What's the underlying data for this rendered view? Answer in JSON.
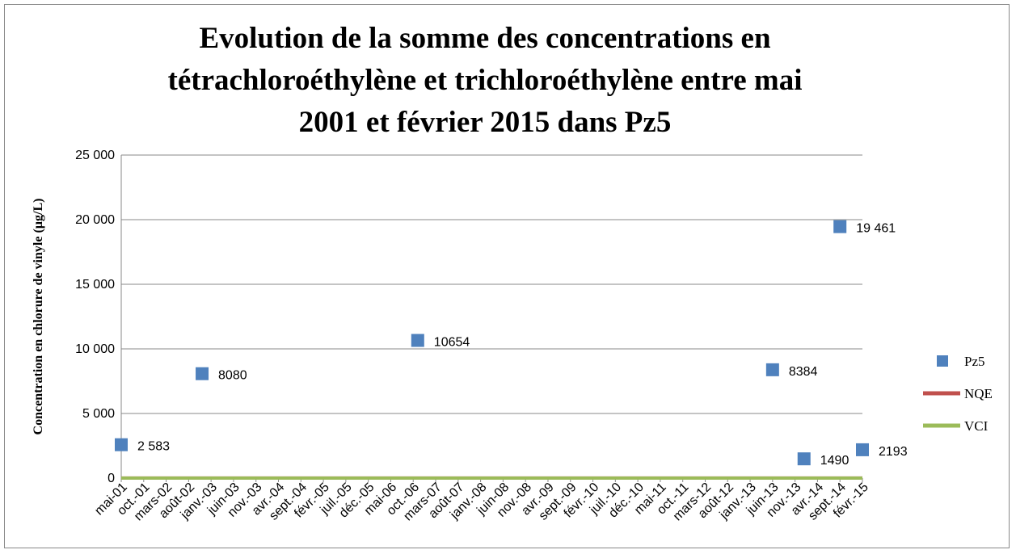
{
  "chart_data": {
    "type": "scatter",
    "title": "Evolution de la somme des concentrations en tétrachloroéthylène et trichloroéthylène entre mai 2001 et février 2015 dans Pz5",
    "ylabel": "Concentration en chlorure de vinyle (µg/L)",
    "xlim": [
      "2001-05",
      "2015-02"
    ],
    "xticks": [
      {
        "value": "2001-05",
        "label": "mai-01"
      },
      {
        "value": "2001-10",
        "label": "oct.-01"
      },
      {
        "value": "2002-03",
        "label": "mars-02"
      },
      {
        "value": "2002-08",
        "label": "août-02"
      },
      {
        "value": "2003-01",
        "label": "janv.-03"
      },
      {
        "value": "2003-06",
        "label": "juin-03"
      },
      {
        "value": "2003-11",
        "label": "nov.-03"
      },
      {
        "value": "2004-04",
        "label": "avr.-04"
      },
      {
        "value": "2004-09",
        "label": "sept.-04"
      },
      {
        "value": "2005-02",
        "label": "févr.-05"
      },
      {
        "value": "2005-07",
        "label": "juil.-05"
      },
      {
        "value": "2005-12",
        "label": "déc.-05"
      },
      {
        "value": "2006-05",
        "label": "mai-06"
      },
      {
        "value": "2006-10",
        "label": "oct.-06"
      },
      {
        "value": "2007-03",
        "label": "mars-07"
      },
      {
        "value": "2007-08",
        "label": "août-07"
      },
      {
        "value": "2008-01",
        "label": "janv.-08"
      },
      {
        "value": "2008-06",
        "label": "juin-08"
      },
      {
        "value": "2008-11",
        "label": "nov.-08"
      },
      {
        "value": "2009-04",
        "label": "avr.-09"
      },
      {
        "value": "2009-09",
        "label": "sept.-09"
      },
      {
        "value": "2010-02",
        "label": "févr.-10"
      },
      {
        "value": "2010-07",
        "label": "juil.-10"
      },
      {
        "value": "2010-12",
        "label": "déc.-10"
      },
      {
        "value": "2011-05",
        "label": "mai-11"
      },
      {
        "value": "2011-10",
        "label": "oct.-11"
      },
      {
        "value": "2012-03",
        "label": "mars-12"
      },
      {
        "value": "2012-08",
        "label": "août-12"
      },
      {
        "value": "2013-01",
        "label": "janv.-13"
      },
      {
        "value": "2013-06",
        "label": "juin-13"
      },
      {
        "value": "2013-11",
        "label": "nov.-13"
      },
      {
        "value": "2014-04",
        "label": "avr.-14"
      },
      {
        "value": "2014-09",
        "label": "sept.-14"
      },
      {
        "value": "2015-02",
        "label": "févr.-15"
      }
    ],
    "ylim": [
      0,
      25000
    ],
    "yticks": [
      0,
      {
        "value": 5000,
        "label": "5 000"
      },
      {
        "value": 10000,
        "label": "10 000"
      },
      {
        "value": 15000,
        "label": "15 000"
      },
      {
        "value": 20000,
        "label": "20 000"
      },
      {
        "value": 25000,
        "label": "25 000"
      }
    ],
    "grid": true,
    "legend": "right",
    "series": [
      {
        "name": "Pz5",
        "color": "#4f81bd",
        "marker": "square",
        "x": [
          "2001-05",
          "2002-11",
          "2006-11",
          "2013-06",
          "2014-01",
          "2014-09",
          "2015-02"
        ],
        "values": [
          2583,
          8080,
          10654,
          8384,
          1490,
          19461,
          2193
        ],
        "value_labels": [
          "2 583",
          "8080",
          "10654",
          "8384",
          "1490",
          "19 461",
          "2193"
        ]
      },
      {
        "name": "NQE",
        "color": "#c0504d",
        "marker": "line",
        "x": [
          "2001-05",
          "2015-02"
        ],
        "values": [
          10,
          10
        ]
      },
      {
        "name": "VCI",
        "color": "#9bbb59",
        "marker": "line",
        "x": [
          "2001-05",
          "2015-02"
        ],
        "values": [
          0.5,
          0.5
        ]
      }
    ]
  }
}
